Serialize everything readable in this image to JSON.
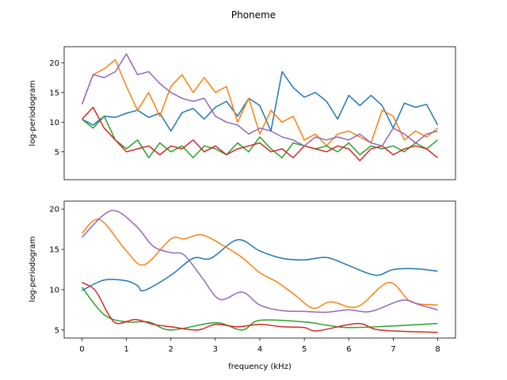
{
  "title": "Phoneme",
  "colors": [
    "#1f77b4",
    "#ff7f0e",
    "#2ca02c",
    "#d62728",
    "#9467bd"
  ],
  "chart_data": [
    {
      "type": "line",
      "title": "",
      "xlabel": "",
      "ylabel": "log-periodogram",
      "xlim": [
        -0.4,
        8.4
      ],
      "ylim": [
        0.3,
        22.7
      ],
      "xticks_visible": false,
      "yticks": [
        5,
        10,
        15,
        20
      ],
      "ytick_labels": [
        "5",
        "10",
        "15",
        "20"
      ],
      "grid": false,
      "x": [
        0,
        0.25,
        0.5,
        0.75,
        1,
        1.25,
        1.5,
        1.75,
        2,
        2.25,
        2.5,
        2.75,
        3,
        3.25,
        3.5,
        3.75,
        4,
        4.25,
        4.5,
        4.75,
        5,
        5.25,
        5.5,
        5.75,
        6,
        6.25,
        6.5,
        6.75,
        7,
        7.25,
        7.5,
        7.75,
        8
      ],
      "series": [
        {
          "color": "#1f77b4",
          "values": [
            10.5,
            9.5,
            11,
            10.8,
            11.5,
            12,
            10.8,
            11.5,
            8.5,
            11.6,
            12.3,
            10.5,
            12.5,
            13.5,
            11,
            14,
            12.8,
            8.5,
            18.5,
            15.8,
            14.2,
            15,
            13.5,
            10.5,
            14.5,
            12.8,
            14.5,
            12.8,
            9,
            13.2,
            12.5,
            13,
            9.5
          ]
        },
        {
          "color": "#ff7f0e",
          "values": [
            13,
            18,
            19,
            20.5,
            16,
            12,
            15,
            11,
            16,
            18,
            15,
            17.5,
            15,
            16,
            10,
            14,
            8,
            12,
            10,
            11,
            7,
            8,
            6,
            8,
            8.5,
            7.5,
            6.5,
            12,
            11,
            7,
            8.5,
            7.5,
            9
          ]
        },
        {
          "color": "#2ca02c",
          "values": [
            10.5,
            9,
            11,
            7,
            5.5,
            7,
            4,
            6.5,
            5,
            6,
            4,
            6,
            5.5,
            4.5,
            6.5,
            5,
            7.5,
            5.5,
            4,
            6.5,
            6,
            5.5,
            6,
            5,
            6.5,
            4.5,
            6,
            5.5,
            6,
            5,
            6.5,
            5.5,
            7
          ]
        },
        {
          "color": "#d62728",
          "values": [
            10.5,
            12.5,
            9,
            7,
            5,
            5.5,
            6,
            4.5,
            6,
            5.5,
            7,
            5,
            6,
            4.5,
            5.5,
            6,
            6.5,
            5,
            5.5,
            4,
            6,
            5.5,
            5,
            6,
            5.5,
            3.5,
            5.5,
            6,
            4.5,
            5.5,
            6,
            5.5,
            4
          ]
        },
        {
          "color": "#9467bd",
          "values": [
            13,
            18,
            17.5,
            18.5,
            21.5,
            18,
            18.5,
            16.5,
            15,
            14,
            13.5,
            14,
            11,
            10,
            9.5,
            8,
            9,
            8.5,
            7.5,
            7,
            6,
            7.5,
            7,
            7.5,
            7,
            8,
            6.5,
            6,
            9,
            8,
            6.5,
            8,
            8.5
          ]
        }
      ]
    },
    {
      "type": "line",
      "title": "",
      "xlabel": "frequency (kHz)",
      "ylabel": "log-periodogram",
      "xlim": [
        -0.4,
        8.4
      ],
      "ylim": [
        4.0,
        21.0
      ],
      "xticks": [
        0,
        1,
        2,
        3,
        4,
        5,
        6,
        7,
        8
      ],
      "xtick_labels": [
        "0",
        "1",
        "2",
        "3",
        "4",
        "5",
        "6",
        "7",
        "8"
      ],
      "yticks": [
        5,
        10,
        15,
        20
      ],
      "ytick_labels": [
        "5",
        "10",
        "15",
        "20"
      ],
      "grid": false,
      "series": [
        {
          "color": "#1f77b4",
          "x": [
            0,
            0.5,
            1,
            1.25,
            1.4,
            2,
            2.5,
            2.9,
            3.5,
            4,
            4.5,
            5,
            5.5,
            6,
            6.6,
            7,
            7.5,
            8
          ],
          "values": [
            9.9,
            11.2,
            11.1,
            10.5,
            9.9,
            11.8,
            13.9,
            13.9,
            16.2,
            14.8,
            13.9,
            13.7,
            14.0,
            13.0,
            11.8,
            12.5,
            12.6,
            12.3
          ]
        },
        {
          "color": "#ff7f0e",
          "x": [
            0,
            0.4,
            1,
            1.4,
            2,
            2.3,
            2.7,
            3.2,
            3.6,
            4,
            4.4,
            4.8,
            5.2,
            5.6,
            6.2,
            6.9,
            7.4,
            8
          ],
          "values": [
            17.0,
            18.7,
            14.8,
            13.1,
            16.3,
            16.3,
            16.8,
            15.4,
            14.0,
            12.1,
            10.9,
            9.3,
            7.7,
            8.5,
            7.9,
            10.9,
            8.5,
            8.1
          ]
        },
        {
          "color": "#2ca02c",
          "x": [
            0,
            0.5,
            1,
            1.5,
            2,
            3,
            3.6,
            4,
            5,
            5.5,
            6,
            7,
            8
          ],
          "values": [
            10.3,
            6.9,
            6.0,
            6.0,
            5.0,
            5.9,
            5.0,
            6.2,
            6.0,
            5.6,
            5.3,
            5.5,
            5.8
          ]
        },
        {
          "color": "#d62728",
          "x": [
            0,
            0.3,
            0.6,
            0.8,
            1.2,
            1.6,
            2,
            2.6,
            3,
            3.5,
            4,
            4.5,
            5,
            5.3,
            6.2,
            6.7,
            8
          ],
          "values": [
            10.9,
            9.9,
            6.9,
            5.8,
            6.3,
            5.7,
            5.4,
            5.0,
            5.7,
            5.4,
            5.7,
            5.4,
            5.3,
            4.9,
            5.8,
            5.0,
            4.7
          ]
        },
        {
          "color": "#9467bd",
          "x": [
            0,
            0.65,
            1.2,
            1.6,
            2,
            2.3,
            2.7,
            3.1,
            3.6,
            4,
            4.5,
            5,
            5.5,
            6,
            6.5,
            7.2,
            7.6,
            8
          ],
          "values": [
            16.5,
            19.8,
            18.0,
            15.4,
            14.6,
            14.3,
            11.5,
            8.8,
            9.7,
            8.1,
            7.4,
            7.3,
            7.2,
            7.5,
            7.3,
            8.7,
            8.1,
            7.5
          ]
        }
      ]
    }
  ]
}
